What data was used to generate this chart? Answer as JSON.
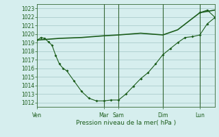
{
  "background_color": "#d6eeee",
  "grid_color": "#aacccc",
  "line_color": "#1a5c1a",
  "xlabel": "Pression niveau de la mer( hPa )",
  "ylim": [
    1011.5,
    1023.5
  ],
  "yticks": [
    1012,
    1013,
    1014,
    1015,
    1016,
    1017,
    1018,
    1019,
    1020,
    1021,
    1022,
    1023
  ],
  "xlim": [
    0,
    24
  ],
  "day_labels": [
    "Ven",
    "Mar",
    "Sam",
    "Dim",
    "Lun"
  ],
  "day_positions": [
    0,
    9,
    11,
    17,
    22
  ],
  "vline_positions": [
    9,
    11,
    17,
    22
  ],
  "series1_x": [
    0,
    0.5,
    1,
    1.5,
    2,
    2.5,
    3,
    3.5,
    4,
    5,
    6,
    7,
    8,
    9,
    10,
    11,
    12,
    13,
    14,
    15,
    16,
    17,
    18,
    19,
    20,
    21,
    22,
    23,
    24
  ],
  "series1_y": [
    1019.3,
    1019.6,
    1019.5,
    1019.1,
    1018.7,
    1017.5,
    1016.5,
    1016.0,
    1015.7,
    1014.5,
    1013.3,
    1012.5,
    1012.2,
    1012.2,
    1012.3,
    1012.3,
    1013.0,
    1013.9,
    1014.8,
    1015.5,
    1016.5,
    1017.6,
    1018.3,
    1019.0,
    1019.6,
    1019.7,
    1019.9,
    1021.2,
    1021.9
  ],
  "series2_x": [
    0,
    3,
    6,
    9,
    11,
    14,
    17,
    19,
    22,
    24
  ],
  "series2_y": [
    1019.3,
    1019.5,
    1019.6,
    1019.8,
    1019.9,
    1020.1,
    1019.9,
    1020.5,
    1022.5,
    1022.8
  ],
  "series3_x": [
    22,
    23,
    24
  ],
  "series3_y": [
    1022.5,
    1022.8,
    1022.0
  ]
}
